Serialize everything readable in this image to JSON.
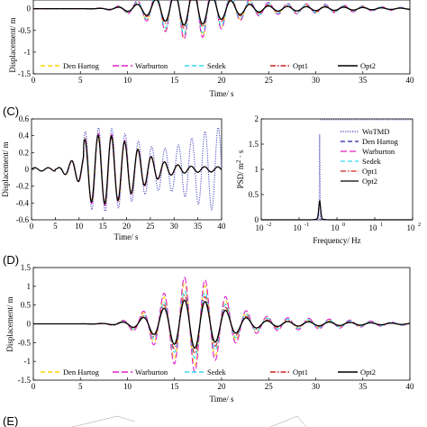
{
  "panel_letters": [
    "(C)",
    "(D)",
    "(E)"
  ],
  "chart_data": [
    {
      "id": "top",
      "type": "line",
      "xlabel": "Time/ s",
      "ylabel": "Displacement/ m",
      "xlim": [
        0,
        40
      ],
      "ylim": [
        -1.5,
        0.2
      ],
      "xticks": [
        "0",
        "5",
        "10",
        "15",
        "20",
        "25",
        "30",
        "35",
        "40"
      ],
      "yticks": [
        "0",
        "-0.5",
        "-1",
        "-1.5"
      ],
      "legend": [
        "Den Hartog",
        "Warburton",
        "Sedek",
        "Opt1",
        "Opt2"
      ],
      "legend_placement": "bottom, one row",
      "colors": [
        "#ffd500",
        "#e020c8",
        "#30d8f0",
        "#d02020",
        "#000000"
      ],
      "description_values": {
        "peak_amplitude_m": 0.6,
        "dominant_period_s": 2.0,
        "envelope_peak_time_s": 16.5
      }
    },
    {
      "id": "C-left",
      "type": "line",
      "xlabel": "Time/ s",
      "ylabel": "Displacement/ m",
      "xlim": [
        0,
        40
      ],
      "ylim": [
        -0.6,
        0.6
      ],
      "xticks": [
        "0",
        "5",
        "10",
        "15",
        "20",
        "25",
        "30",
        "35",
        "40"
      ],
      "yticks": [
        "0.6",
        "0.4",
        "0.2",
        "0",
        "-0.2",
        "-0.4",
        "-0.6"
      ],
      "colors": [
        "#4040c0",
        "#ffd500",
        "#e020c8",
        "#30d8f0",
        "#d02020",
        "#000000"
      ],
      "description_values": {
        "WoTMD_peak_m": 0.55,
        "TMD_peak_m": 0.42,
        "dominant_period_s": 2.8
      }
    },
    {
      "id": "C-right",
      "type": "line",
      "xlabel": "Frequency/ Hz",
      "ylabel": "PSD/ m^2 s",
      "xscale": "log",
      "xlim": [
        0.01,
        100
      ],
      "ylim": [
        0,
        2
      ],
      "xticks": [
        "10",
        "10",
        "10",
        "10",
        "10"
      ],
      "xtick_exponents": [
        "-2",
        "-1",
        "0",
        "1",
        "2"
      ],
      "yticks": [
        "2",
        "1.5",
        "1",
        "0.5",
        "0"
      ],
      "legend": [
        "WoTMD",
        "Den Hartog",
        "Warburton",
        "Sedek",
        "Opt1",
        "Opt2"
      ],
      "legend_placement": "top-right",
      "colors": [
        "#4040c0",
        "#2020a0",
        "#e020c8",
        "#30d8f0",
        "#d02020",
        "#000000"
      ],
      "series": [
        {
          "name": "WoTMD",
          "peak_freq_hz": 0.35,
          "peak_psd": 1.7
        },
        {
          "name": "Opt2",
          "peak_freq_hz": 0.35,
          "peak_psd": 0.35
        }
      ]
    },
    {
      "id": "D",
      "type": "line",
      "xlabel": "Time/ s",
      "ylabel": "Displacement/ m",
      "xlim": [
        0,
        40
      ],
      "ylim": [
        -1.5,
        1.5
      ],
      "xticks": [
        "0",
        "5",
        "10",
        "15",
        "20",
        "25",
        "30",
        "35",
        "40"
      ],
      "yticks": [
        "1.5",
        "1",
        "0.5",
        "0",
        "-0.5",
        "-1",
        "-1.5"
      ],
      "legend": [
        "Den Hartog",
        "Warburton",
        "Sedek",
        "Opt1",
        "Opt2"
      ],
      "legend_placement": "bottom, one row",
      "colors": [
        "#ffd500",
        "#e020c8",
        "#30d8f0",
        "#d02020",
        "#000000"
      ],
      "description_values": {
        "peak_amplitude_m": 1.2,
        "opt2_peak_m": 0.6,
        "dominant_period_s": 2.2,
        "envelope_peak_time_s": 16.5
      }
    }
  ]
}
